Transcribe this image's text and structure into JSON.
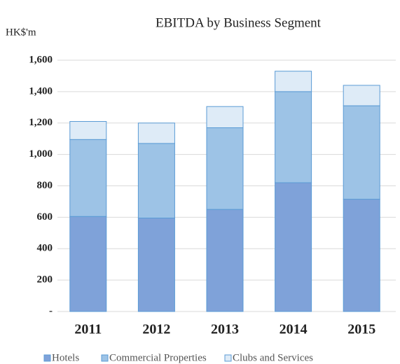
{
  "chart_data": {
    "type": "stacked_bar",
    "title": "EBITDA by Business Segment",
    "y_label": "HK$'m",
    "categories": [
      "2011",
      "2012",
      "2013",
      "2014",
      "2015"
    ],
    "series": [
      {
        "name": "Hotels",
        "color": "#7fa2d9",
        "values": [
          605,
          595,
          650,
          820,
          715
        ]
      },
      {
        "name": "Commercial Properties",
        "color": "#9dc3e6",
        "values": [
          490,
          475,
          520,
          580,
          595
        ]
      },
      {
        "name": "Clubs and Services",
        "color": "#deebf7",
        "values": [
          115,
          130,
          135,
          130,
          130
        ]
      }
    ],
    "ylim": [
      0,
      1600
    ],
    "yticks": [
      {
        "value": 0,
        "label": "-"
      },
      200,
      400,
      600,
      800,
      {
        "value": 1000,
        "label": "1,000"
      },
      {
        "value": 1200,
        "label": "1,200"
      },
      {
        "value": 1400,
        "label": "1,400"
      },
      {
        "value": 1600,
        "label": "1,600"
      }
    ],
    "grid": true
  }
}
